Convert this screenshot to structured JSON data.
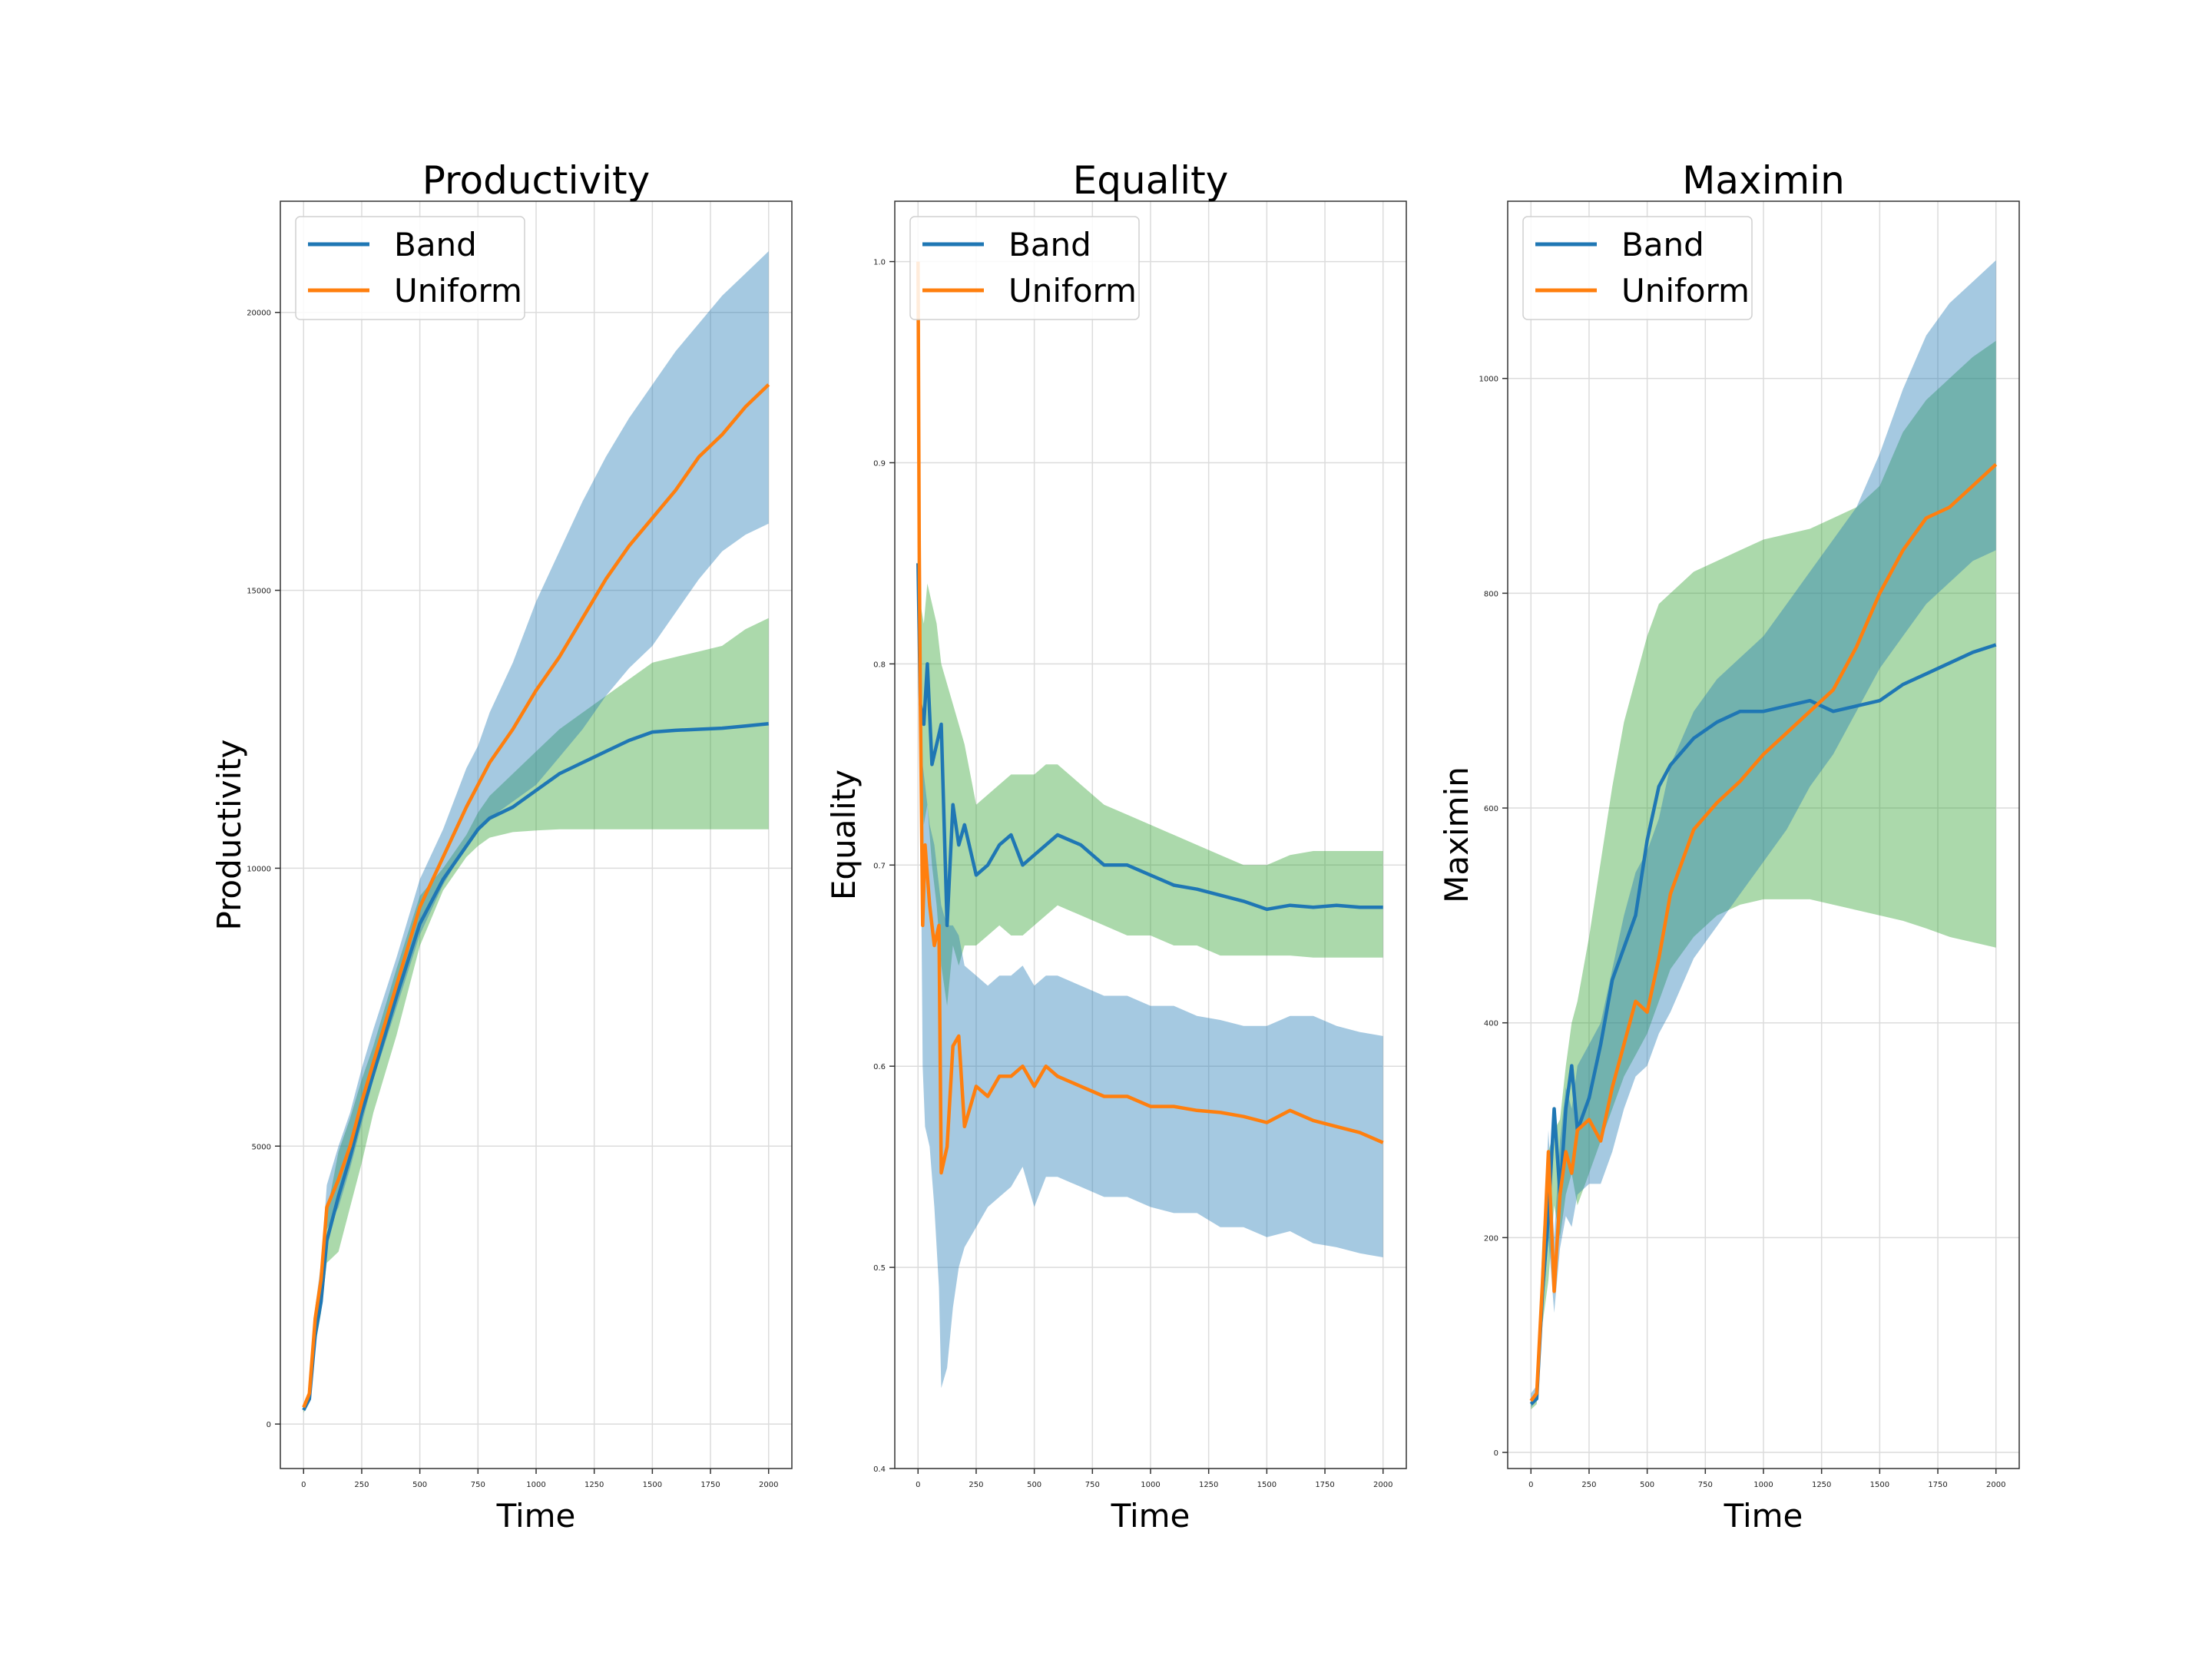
{
  "chart_data": [
    {
      "type": "line",
      "title": "Productivity",
      "xlabel": "Time",
      "ylabel": "Productivity",
      "xlim": [
        -100,
        2100
      ],
      "ylim": [
        -800,
        22000
      ],
      "xticks": [
        0,
        250,
        500,
        750,
        1000,
        1250,
        1500,
        1750,
        2000
      ],
      "yticks": [
        0,
        5000,
        10000,
        15000,
        20000
      ],
      "grid": true,
      "legend_position": "top-left",
      "legend": [
        {
          "label": "Band",
          "color": "#1f77b4"
        },
        {
          "label": "Uniform",
          "color": "#ff7f0e"
        }
      ],
      "series": [
        {
          "name": "Band",
          "color": "#1f77b4",
          "x": [
            0,
            25,
            50,
            75,
            100,
            150,
            200,
            250,
            300,
            400,
            500,
            600,
            700,
            750,
            800,
            900,
            1000,
            1100,
            1200,
            1300,
            1400,
            1500,
            1600,
            1700,
            1800,
            1900,
            2000
          ],
          "y": [
            250,
            450,
            1600,
            2200,
            3300,
            4100,
            4800,
            5600,
            6300,
            7700,
            9000,
            9800,
            10400,
            10700,
            10900,
            11100,
            11400,
            11700,
            11900,
            12100,
            12300,
            12450,
            12480,
            12500,
            12520,
            12560,
            12600
          ],
          "lower": [
            200,
            400,
            1400,
            2000,
            2900,
            3100,
            3900,
            4700,
            5600,
            7000,
            8600,
            9600,
            10200,
            10400,
            10550,
            10650,
            10680,
            10700,
            10700,
            10700,
            10700,
            10700,
            10700,
            10700,
            10700,
            10700,
            10700
          ],
          "upper": [
            350,
            550,
            1900,
            2600,
            3800,
            4900,
            5500,
            6200,
            6800,
            8200,
            9500,
            10000,
            10600,
            11000,
            11300,
            11700,
            12100,
            12500,
            12800,
            13100,
            13400,
            13700,
            13800,
            13900,
            14000,
            14300,
            14500
          ],
          "band_color": "#2ca02c"
        },
        {
          "name": "Uniform",
          "color": "#ff7f0e",
          "x": [
            0,
            25,
            50,
            75,
            100,
            150,
            200,
            250,
            300,
            400,
            500,
            600,
            700,
            750,
            800,
            900,
            1000,
            1100,
            1200,
            1300,
            1400,
            1500,
            1600,
            1700,
            1800,
            1900,
            2000
          ],
          "y": [
            300,
            550,
            1900,
            2600,
            3900,
            4400,
            5000,
            5800,
            6500,
            7900,
            9300,
            10200,
            11100,
            11500,
            11900,
            12500,
            13200,
            13800,
            14500,
            15200,
            15800,
            16300,
            16800,
            17400,
            17800,
            18300,
            18700
          ],
          "lower": [
            250,
            450,
            1600,
            2300,
            3500,
            3900,
            4600,
            5400,
            6200,
            7500,
            8800,
            9700,
            10400,
            10700,
            10900,
            11200,
            11500,
            12000,
            12500,
            13100,
            13600,
            14000,
            14600,
            15200,
            15700,
            16000,
            16200
          ],
          "upper": [
            350,
            600,
            2100,
            2900,
            4300,
            5000,
            5600,
            6400,
            7100,
            8400,
            9800,
            10700,
            11800,
            12200,
            12800,
            13700,
            14800,
            15700,
            16600,
            17400,
            18100,
            18700,
            19300,
            19800,
            20300,
            20700,
            21100
          ],
          "band_color": "#1f77b4"
        }
      ]
    },
    {
      "type": "line",
      "title": "Equality",
      "xlabel": "Time",
      "ylabel": "Equality",
      "xlim": [
        -100,
        2100
      ],
      "ylim": [
        0.4,
        1.03
      ],
      "xticks": [
        0,
        250,
        500,
        750,
        1000,
        1250,
        1500,
        1750,
        2000
      ],
      "yticks": [
        0.4,
        0.5,
        0.6,
        0.7,
        0.8,
        0.9,
        1.0
      ],
      "grid": true,
      "legend_position": "top-left",
      "legend": [
        {
          "label": "Band",
          "color": "#1f77b4"
        },
        {
          "label": "Uniform",
          "color": "#ff7f0e"
        }
      ],
      "series": [
        {
          "name": "Band",
          "color": "#1f77b4",
          "x": [
            0,
            10,
            25,
            40,
            60,
            80,
            100,
            125,
            150,
            175,
            200,
            250,
            300,
            350,
            400,
            450,
            500,
            550,
            600,
            700,
            800,
            900,
            1000,
            1100,
            1200,
            1300,
            1400,
            1500,
            1600,
            1700,
            1800,
            1900,
            2000
          ],
          "y": [
            0.85,
            0.78,
            0.77,
            0.8,
            0.75,
            0.76,
            0.77,
            0.67,
            0.73,
            0.71,
            0.72,
            0.695,
            0.7,
            0.71,
            0.715,
            0.7,
            0.705,
            0.71,
            0.715,
            0.71,
            0.7,
            0.7,
            0.695,
            0.69,
            0.688,
            0.685,
            0.682,
            0.678,
            0.68,
            0.679,
            0.68,
            0.679,
            0.679
          ],
          "lower": [
            0.82,
            0.75,
            0.72,
            0.73,
            0.7,
            0.68,
            0.65,
            0.63,
            0.66,
            0.65,
            0.66,
            0.66,
            0.665,
            0.67,
            0.665,
            0.665,
            0.67,
            0.675,
            0.68,
            0.675,
            0.67,
            0.665,
            0.665,
            0.66,
            0.66,
            0.655,
            0.655,
            0.655,
            0.655,
            0.654,
            0.654,
            0.654,
            0.654
          ],
          "upper": [
            0.87,
            0.83,
            0.82,
            0.84,
            0.83,
            0.82,
            0.8,
            0.79,
            0.78,
            0.77,
            0.76,
            0.73,
            0.735,
            0.74,
            0.745,
            0.745,
            0.745,
            0.75,
            0.75,
            0.74,
            0.73,
            0.725,
            0.72,
            0.715,
            0.71,
            0.705,
            0.7,
            0.7,
            0.705,
            0.707,
            0.707,
            0.707,
            0.707
          ],
          "band_color": "#2ca02c"
        },
        {
          "name": "Uniform",
          "color": "#ff7f0e",
          "x": [
            0,
            5,
            10,
            20,
            30,
            50,
            70,
            90,
            100,
            125,
            150,
            175,
            200,
            250,
            300,
            350,
            400,
            450,
            500,
            550,
            600,
            700,
            800,
            900,
            1000,
            1100,
            1200,
            1300,
            1400,
            1500,
            1600,
            1700,
            1800,
            1900,
            2000
          ],
          "y": [
            1.0,
            0.86,
            0.78,
            0.67,
            0.71,
            0.68,
            0.66,
            0.67,
            0.547,
            0.56,
            0.61,
            0.615,
            0.57,
            0.59,
            0.585,
            0.595,
            0.595,
            0.6,
            0.59,
            0.6,
            0.595,
            0.59,
            0.585,
            0.585,
            0.58,
            0.58,
            0.578,
            0.577,
            0.575,
            0.572,
            0.578,
            0.573,
            0.57,
            0.567,
            0.562
          ],
          "lower": [
            0.98,
            0.84,
            0.74,
            0.6,
            0.57,
            0.56,
            0.53,
            0.49,
            0.44,
            0.45,
            0.48,
            0.5,
            0.51,
            0.52,
            0.53,
            0.535,
            0.54,
            0.55,
            0.53,
            0.545,
            0.545,
            0.54,
            0.535,
            0.535,
            0.53,
            0.527,
            0.527,
            0.52,
            0.52,
            0.515,
            0.518,
            0.512,
            0.51,
            0.507,
            0.505
          ],
          "upper": [
            1.0,
            0.88,
            0.82,
            0.75,
            0.74,
            0.72,
            0.71,
            0.69,
            0.68,
            0.67,
            0.67,
            0.665,
            0.65,
            0.645,
            0.64,
            0.645,
            0.645,
            0.65,
            0.64,
            0.645,
            0.645,
            0.64,
            0.635,
            0.635,
            0.63,
            0.63,
            0.625,
            0.623,
            0.62,
            0.62,
            0.625,
            0.625,
            0.62,
            0.617,
            0.615
          ],
          "band_color": "#1f77b4"
        }
      ]
    },
    {
      "type": "line",
      "title": "Maximin",
      "xlabel": "Time",
      "ylabel": "Maximin",
      "xlim": [
        -100,
        2100
      ],
      "ylim": [
        -15,
        1165
      ],
      "xticks": [
        0,
        250,
        500,
        750,
        1000,
        1250,
        1500,
        1750,
        2000
      ],
      "yticks": [
        0,
        200,
        400,
        600,
        800,
        1000
      ],
      "grid": true,
      "legend_position": "top-left",
      "legend": [
        {
          "label": "Band",
          "color": "#1f77b4"
        },
        {
          "label": "Uniform",
          "color": "#ff7f0e"
        }
      ],
      "series": [
        {
          "name": "Band",
          "color": "#1f77b4",
          "x": [
            0,
            25,
            50,
            75,
            100,
            125,
            150,
            175,
            200,
            250,
            300,
            350,
            400,
            450,
            500,
            550,
            600,
            700,
            800,
            900,
            1000,
            1100,
            1200,
            1300,
            1400,
            1500,
            1600,
            1700,
            1800,
            1900,
            2000
          ],
          "y": [
            45,
            50,
            150,
            220,
            320,
            240,
            320,
            360,
            300,
            330,
            380,
            440,
            470,
            500,
            570,
            620,
            640,
            665,
            680,
            690,
            690,
            695,
            700,
            690,
            695,
            700,
            715,
            725,
            735,
            745,
            752
          ],
          "lower": [
            40,
            45,
            120,
            160,
            230,
            200,
            240,
            260,
            230,
            260,
            290,
            320,
            350,
            370,
            390,
            420,
            450,
            480,
            500,
            510,
            515,
            515,
            515,
            510,
            505,
            500,
            495,
            488,
            480,
            475,
            470
          ],
          "upper": [
            50,
            55,
            200,
            280,
            300,
            310,
            360,
            400,
            420,
            480,
            550,
            620,
            680,
            720,
            760,
            790,
            800,
            820,
            830,
            840,
            850,
            855,
            860,
            870,
            880,
            900,
            950,
            980,
            1000,
            1020,
            1035
          ],
          "band_color": "#2ca02c"
        },
        {
          "name": "Uniform",
          "color": "#ff7f0e",
          "x": [
            0,
            25,
            50,
            75,
            100,
            125,
            150,
            175,
            200,
            250,
            300,
            350,
            400,
            450,
            500,
            550,
            600,
            700,
            800,
            900,
            1000,
            1100,
            1200,
            1300,
            1400,
            1500,
            1600,
            1700,
            1800,
            1900,
            2000
          ],
          "y": [
            48,
            55,
            160,
            280,
            150,
            240,
            280,
            260,
            300,
            310,
            290,
            340,
            380,
            420,
            410,
            460,
            520,
            580,
            605,
            625,
            650,
            670,
            690,
            710,
            750,
            800,
            840,
            870,
            880,
            900,
            920
          ],
          "lower": [
            42,
            48,
            130,
            200,
            130,
            190,
            220,
            210,
            240,
            250,
            250,
            280,
            320,
            350,
            360,
            390,
            410,
            460,
            490,
            520,
            550,
            580,
            620,
            650,
            690,
            730,
            760,
            790,
            810,
            830,
            840
          ],
          "upper": [
            55,
            62,
            190,
            300,
            200,
            290,
            340,
            320,
            360,
            380,
            400,
            450,
            500,
            540,
            560,
            590,
            640,
            690,
            720,
            740,
            760,
            790,
            820,
            850,
            880,
            930,
            990,
            1040,
            1070,
            1090,
            1110
          ],
          "band_color": "#1f77b4"
        }
      ]
    }
  ]
}
